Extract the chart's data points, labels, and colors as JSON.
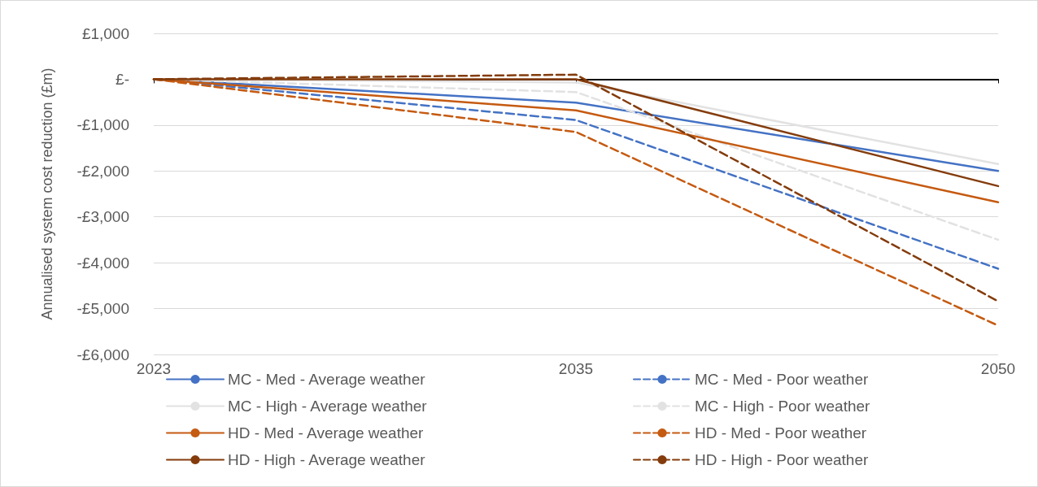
{
  "chart_data": {
    "type": "line",
    "ylabel": "Annualised system cost reduction (£m)",
    "categories": [
      "2023",
      "2035",
      "2050"
    ],
    "ylim": [
      -6000,
      1000
    ],
    "yticks": [
      {
        "value": -6000,
        "label": "-£6,000"
      },
      {
        "value": -5000,
        "label": "-£5,000"
      },
      {
        "value": -4000,
        "label": "-£4,000"
      },
      {
        "value": -3000,
        "label": "-£3,000"
      },
      {
        "value": -2000,
        "label": "-£2,000"
      },
      {
        "value": -1000,
        "label": "-£1,000"
      },
      {
        "value": 0,
        "label": "£-"
      },
      {
        "value": 1000,
        "label": "£1,000"
      }
    ],
    "grid": "y",
    "legend": "bottom",
    "marker": "none",
    "series": [
      {
        "name": "MC - Med - Average weather",
        "color": "#4472c4",
        "line_style": "solid",
        "values": [
          0,
          -510,
          -2000
        ]
      },
      {
        "name": "MC - Med - Poor weather",
        "color": "#4472c4",
        "line_style": "dashed",
        "values": [
          0,
          -890,
          -4130
        ]
      },
      {
        "name": "MC - High - Average weather",
        "color": "#e2e2e2",
        "line_style": "solid",
        "values": [
          0,
          -70,
          -1850
        ]
      },
      {
        "name": "MC - High - Poor weather",
        "color": "#e2e2e2",
        "line_style": "dashed",
        "values": [
          0,
          -280,
          -3500
        ]
      },
      {
        "name": "HD - Med - Average weather",
        "color": "#c55a11",
        "line_style": "solid",
        "values": [
          0,
          -680,
          -2680
        ]
      },
      {
        "name": "HD - Med - Poor weather",
        "color": "#c55a11",
        "line_style": "dashed",
        "values": [
          0,
          -1150,
          -5370
        ]
      },
      {
        "name": "HD - High - Average weather",
        "color": "#843c0c",
        "line_style": "solid",
        "values": [
          0,
          0,
          -2330
        ]
      },
      {
        "name": "HD - High - Poor weather",
        "color": "#843c0c",
        "line_style": "dashed",
        "values": [
          0,
          100,
          -4840
        ]
      }
    ]
  }
}
